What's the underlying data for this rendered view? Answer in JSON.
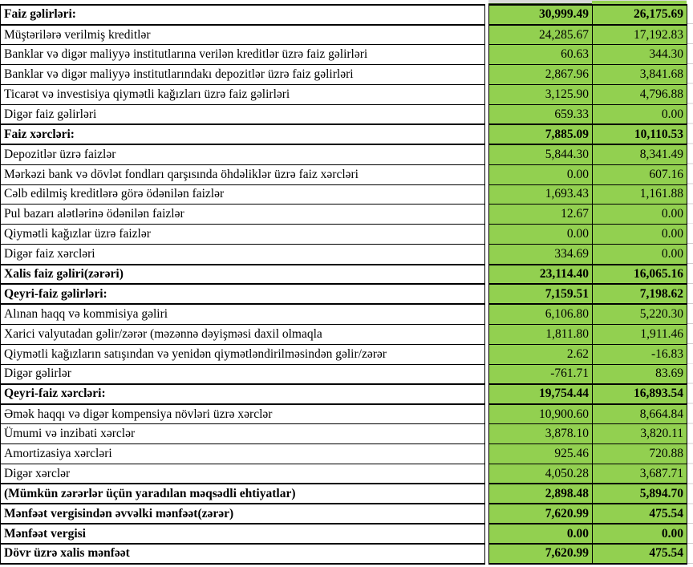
{
  "table": {
    "title_semantic": "income-statement",
    "colors": {
      "cell_green": "#92D050",
      "border_black": "#000000",
      "top_strip_gray": "#D9D9D9",
      "top_strip_dark_green": "#375623",
      "margin_gridline": "#CFCFCF"
    },
    "columns": [
      "label",
      "current_period",
      "prior_period"
    ],
    "rows": [
      {
        "label": "Faiz gəlirləri:",
        "v1": "30,999.49",
        "v2": "26,175.69",
        "bold": true
      },
      {
        "label": "Müştərilərə verilmiş kreditlər",
        "v1": "24,285.67",
        "v2": "17,192.83",
        "bold": false
      },
      {
        "label": "Banklar və digər maliyyə institutlarına verilən kreditlər üzrə faiz gəlirləri",
        "v1": "60.63",
        "v2": "344.30",
        "bold": false
      },
      {
        "label": "Banklar və digər maliyyə institutlarındakı depozitlər üzrə faiz gəlirləri",
        "v1": "2,867.96",
        "v2": "3,841.68",
        "bold": false
      },
      {
        "label": "Ticarət və investisiya qiymətli kağızları üzrə faiz gəlirləri",
        "v1": "3,125.90",
        "v2": "4,796.88",
        "bold": false
      },
      {
        "label": "Digər faiz gəlirləri",
        "v1": "659.33",
        "v2": "0.00",
        "bold": false
      },
      {
        "label": "Faiz xərcləri:",
        "v1": "7,885.09",
        "v2": "10,110.53",
        "bold": true
      },
      {
        "label": "Depozitlər üzrə faizlər",
        "v1": "5,844.30",
        "v2": "8,341.49",
        "bold": false
      },
      {
        "label": "Mərkəzi bank və dövlət fondları qarşısında öhdəliklər üzrə faiz xərcləri",
        "v1": "0.00",
        "v2": "607.16",
        "bold": false
      },
      {
        "label": "Cəlb edilmiş kreditlərə görə ödənilən faizlər",
        "v1": "1,693.43",
        "v2": "1,161.88",
        "bold": false
      },
      {
        "label": "Pul bazarı alətlərinə ödənilən faizlər",
        "v1": "12.67",
        "v2": "0.00",
        "bold": false
      },
      {
        "label": "Qiymətli kağızlar üzrə faizlər",
        "v1": "0.00",
        "v2": "0.00",
        "bold": false
      },
      {
        "label": "Digər faiz xərcləri",
        "v1": "334.69",
        "v2": "0.00",
        "bold": false
      },
      {
        "label": "Xalis faiz gəliri(zərəri)",
        "v1": "23,114.40",
        "v2": "16,065.16",
        "bold": true
      },
      {
        "label": "Qeyri-faiz gəlirləri:",
        "v1": "7,159.51",
        "v2": "7,198.62",
        "bold": true
      },
      {
        "label": "Alınan haqq və kommisiya gəliri",
        "v1": "6,106.80",
        "v2": "5,220.30",
        "bold": false
      },
      {
        "label": "Xarici valyutadan gəlir/zərər (məzənnə dəyişməsi daxil olmaqla",
        "v1": "1,811.80",
        "v2": "1,911.46",
        "bold": false
      },
      {
        "label": "Qiymətli kağızların satışından və yenidən qiymətləndirilməsindən gəlir/zərər",
        "v1": "2.62",
        "v2": "-16.83",
        "bold": false
      },
      {
        "label": "Digər gəlirlər",
        "v1": "-761.71",
        "v2": "83.69",
        "bold": false
      },
      {
        "label": "Qeyri-faiz xərcləri:",
        "v1": "19,754.44",
        "v2": "16,893.54",
        "bold": true
      },
      {
        "label": "Əmək haqqı və digər kompensiya növləri üzrə xərclər",
        "v1": "10,900.60",
        "v2": "8,664.84",
        "bold": false
      },
      {
        "label": "Ümumi və inzibati xərclər",
        "v1": "3,878.10",
        "v2": "3,820.11",
        "bold": false
      },
      {
        "label": "Amortizasiya xərcləri",
        "v1": "925.46",
        "v2": "720.88",
        "bold": false
      },
      {
        "label": "Digər xərclər",
        "v1": "4,050.28",
        "v2": "3,687.71",
        "bold": false
      },
      {
        "label": "(Mümkün zərərlər üçün yaradılan məqsədli ehtiyatlar)",
        "v1": "2,898.48",
        "v2": "5,894.70",
        "bold": true
      },
      {
        "label": "Mənfəət vergisindən əvvəlki mənfəət(zərər)",
        "v1": "7,620.99",
        "v2": "475.54",
        "bold": true
      },
      {
        "label": "Mənfəət vergisi",
        "v1": "0.00",
        "v2": "0.00",
        "bold": true
      },
      {
        "label": "Dövr üzrə xalis mənfəət",
        "v1": "7,620.99",
        "v2": "475.54",
        "bold": true
      }
    ]
  }
}
